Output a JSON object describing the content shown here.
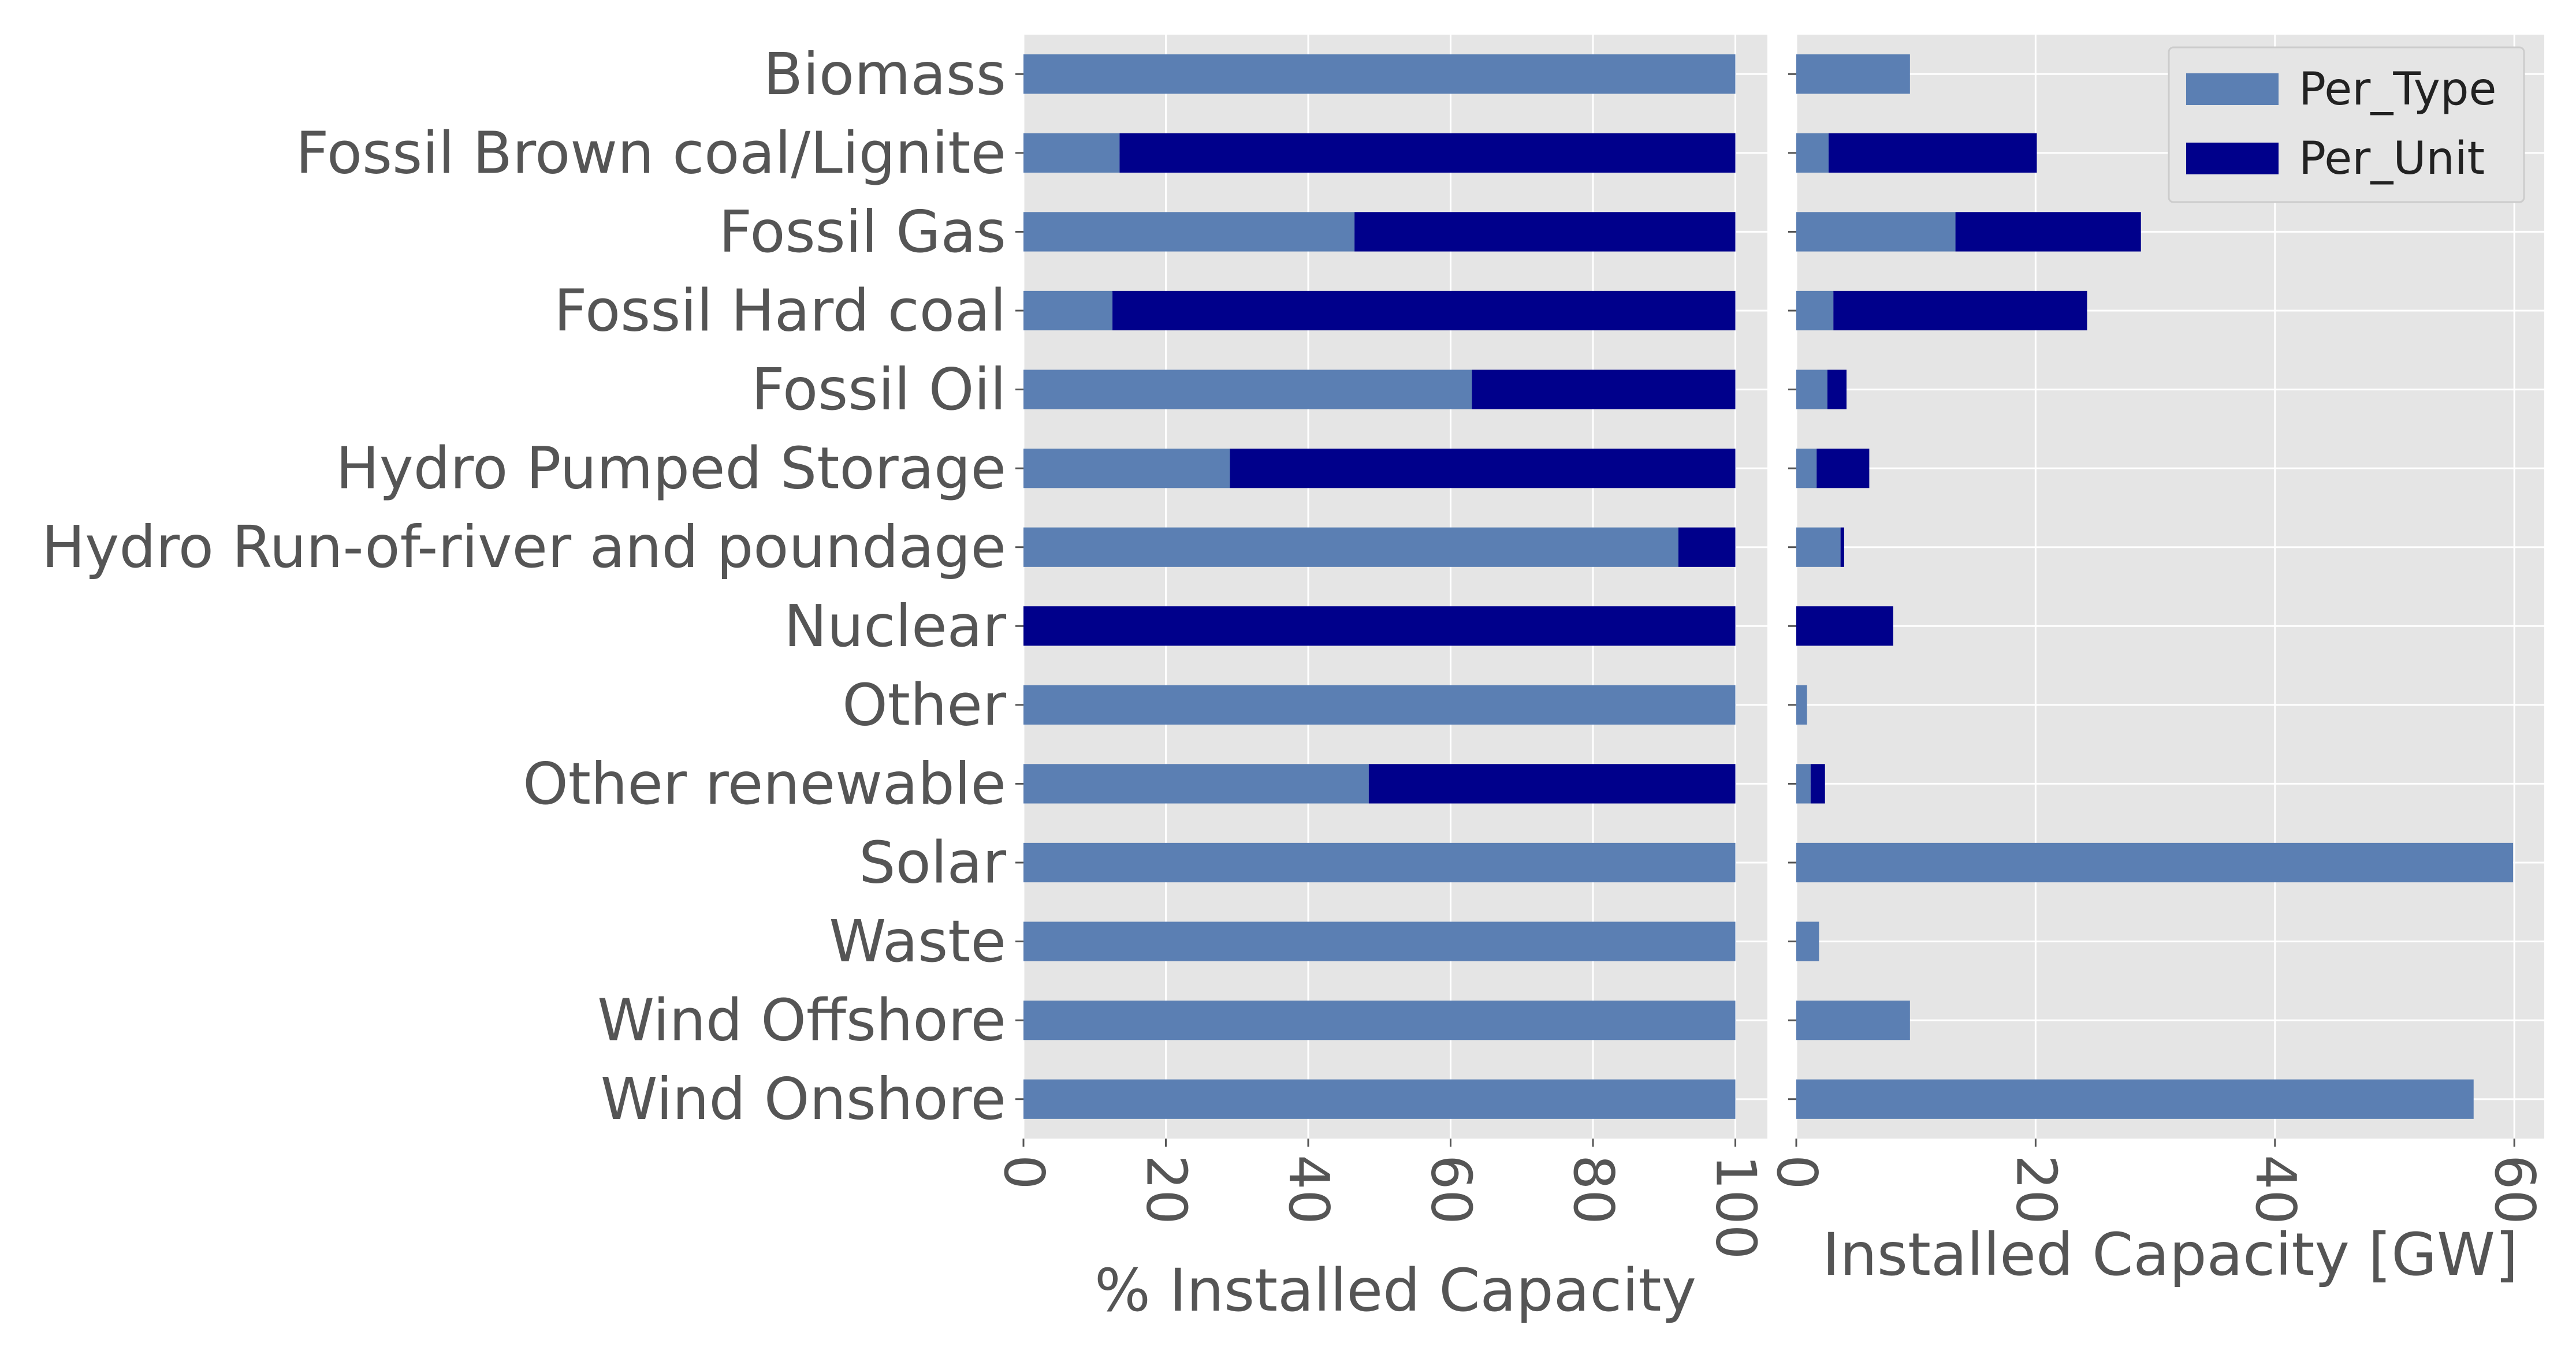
{
  "chart_data": [
    {
      "type": "bar",
      "orientation": "horizontal",
      "stacked": true,
      "categories": [
        "Biomass",
        "Fossil Brown coal/Lignite",
        "Fossil Gas",
        "Fossil Hard coal",
        "Fossil Oil",
        "Hydro Pumped Storage",
        "Hydro Run-of-river and poundage",
        "Nuclear",
        "Other",
        "Other renewable",
        "Solar",
        "Waste",
        "Wind Offshore",
        "Wind Onshore"
      ],
      "series": [
        {
          "name": "Per_Type",
          "values": [
            100,
            13.5,
            46.5,
            12.5,
            63,
            29,
            92,
            0,
            100,
            48.5,
            100,
            100,
            100,
            100
          ]
        },
        {
          "name": "Per_Unit",
          "values": [
            0,
            86.5,
            53.5,
            87.5,
            37,
            71,
            8,
            100,
            0,
            51.5,
            0,
            0,
            0,
            0
          ]
        }
      ],
      "xlabel": "% Installed Capacity",
      "ylabel": "",
      "xlim": [
        0,
        104.5
      ],
      "xticks": [
        "0",
        "20",
        "40",
        "60",
        "80",
        "100"
      ],
      "grid": true
    },
    {
      "type": "bar",
      "orientation": "horizontal",
      "stacked": true,
      "categories": [
        "Biomass",
        "Fossil Brown coal/Lignite",
        "Fossil Gas",
        "Fossil Hard coal",
        "Fossil Oil",
        "Hydro Pumped Storage",
        "Hydro Run-of-river and poundage",
        "Nuclear",
        "Other",
        "Other renewable",
        "Solar",
        "Waste",
        "Wind Offshore",
        "Wind Onshore"
      ],
      "series": [
        {
          "name": "Per_Type",
          "values": [
            9.5,
            2.7,
            13.3,
            3.1,
            2.6,
            1.7,
            3.7,
            0,
            0.9,
            1.2,
            59.9,
            1.9,
            9.5,
            56.6
          ]
        },
        {
          "name": "Per_Unit",
          "values": [
            0,
            17.4,
            15.5,
            21.2,
            1.6,
            4.4,
            0.3,
            8.1,
            0,
            1.2,
            0,
            0,
            0,
            0
          ]
        }
      ],
      "xlabel": "Installed Capacity [GW]",
      "ylabel": "",
      "xlim": [
        0,
        62.5
      ],
      "xticks": [
        "0",
        "20",
        "40",
        "60"
      ],
      "grid": true,
      "legend": {
        "position": "top-right",
        "entries": [
          "Per_Type",
          "Per_Unit"
        ]
      }
    }
  ],
  "colors": {
    "per_type": "#5b7fb3",
    "per_unit": "#00008b",
    "plot_background": "#e5e5e5",
    "grid": "#ffffff",
    "text": "#555555"
  }
}
